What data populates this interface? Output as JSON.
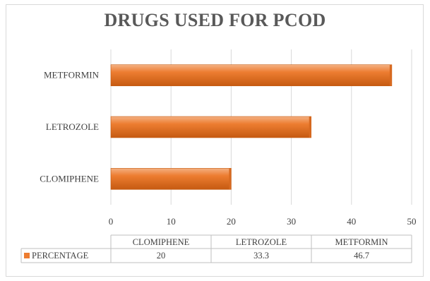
{
  "chart_data": {
    "type": "bar",
    "orientation": "horizontal",
    "title": "DRUGS USED FOR PCOD",
    "categories": [
      "CLOMIPHENE",
      "LETROZOLE",
      "METFORMIN"
    ],
    "series": [
      {
        "name": "PERCENTAGE",
        "values": [
          20,
          33.3,
          46.7
        ],
        "color": "#ed7d31"
      }
    ],
    "xlim": [
      0,
      50
    ],
    "xticks": [
      0,
      10,
      20,
      30,
      40,
      50
    ],
    "grid": true,
    "data_table": {
      "headers": [
        "CLOMIPHENE",
        "LETROZOLE",
        "METFORMIN"
      ],
      "row_label": "PERCENTAGE",
      "row_values": [
        "20",
        "33.3",
        "46.7"
      ]
    }
  },
  "colors": {
    "bar": "#ed7d31",
    "bar_dark": "#c55a11",
    "grid": "#d9d9d9",
    "text": "#404040"
  }
}
